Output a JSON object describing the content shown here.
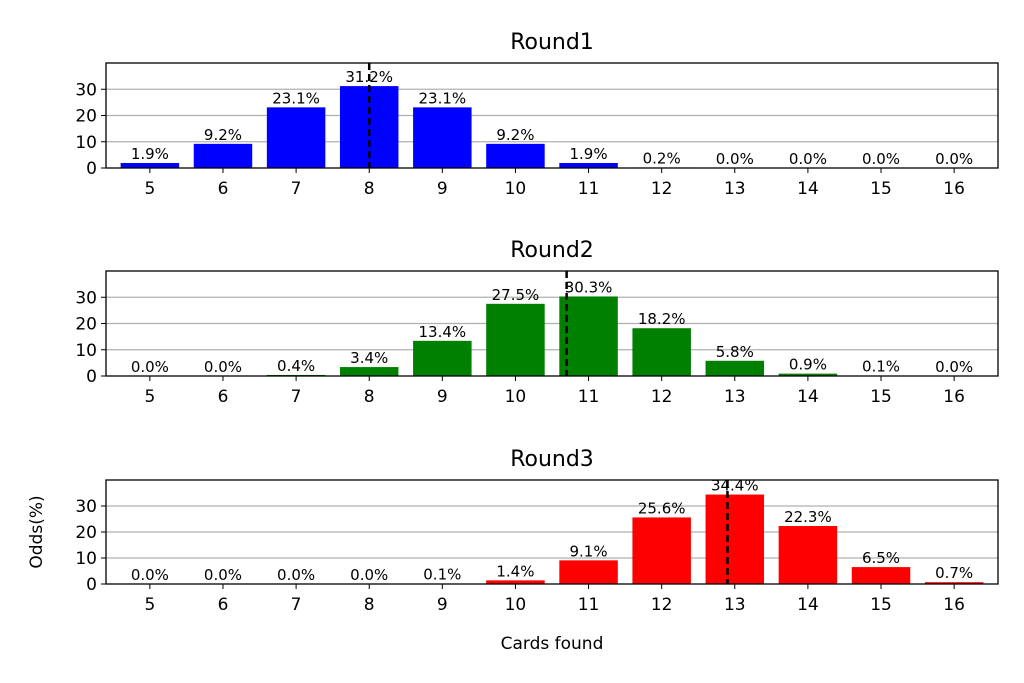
{
  "chart_data": [
    {
      "type": "bar",
      "title": "Round1",
      "xlabel": "",
      "ylabel": "",
      "categories": [
        5,
        6,
        7,
        8,
        9,
        10,
        11,
        12,
        13,
        14,
        15,
        16
      ],
      "values": [
        1.9,
        9.2,
        23.1,
        31.2,
        23.1,
        9.2,
        1.9,
        0.2,
        0.0,
        0.0,
        0.0,
        0.0
      ],
      "value_labels": [
        "1.9%",
        "9.2%",
        "23.1%",
        "31.2%",
        "23.1%",
        "9.2%",
        "1.9%",
        "0.2%",
        "0.0%",
        "0.0%",
        "0.0%",
        "0.0%"
      ],
      "mean_line": 8.0,
      "ylim": [
        0,
        40
      ],
      "yticks": [
        0,
        10,
        20,
        30
      ],
      "grid": "horizontal",
      "color": "#0000ff"
    },
    {
      "type": "bar",
      "title": "Round2",
      "xlabel": "",
      "ylabel": "",
      "categories": [
        5,
        6,
        7,
        8,
        9,
        10,
        11,
        12,
        13,
        14,
        15,
        16
      ],
      "values": [
        0.0,
        0.0,
        0.4,
        3.4,
        13.4,
        27.5,
        30.3,
        18.2,
        5.8,
        0.9,
        0.1,
        0.0
      ],
      "value_labels": [
        "0.0%",
        "0.0%",
        "0.4%",
        "3.4%",
        "13.4%",
        "27.5%",
        "30.3%",
        "18.2%",
        "5.8%",
        "0.9%",
        "0.1%",
        "0.0%"
      ],
      "mean_line": 10.7,
      "ylim": [
        0,
        40
      ],
      "yticks": [
        0,
        10,
        20,
        30
      ],
      "grid": "horizontal",
      "color": "#008000"
    },
    {
      "type": "bar",
      "title": "Round3",
      "xlabel": "Cards found",
      "ylabel": "Odds(%)",
      "categories": [
        5,
        6,
        7,
        8,
        9,
        10,
        11,
        12,
        13,
        14,
        15,
        16
      ],
      "values": [
        0.0,
        0.0,
        0.0,
        0.0,
        0.1,
        1.4,
        9.1,
        25.6,
        34.4,
        22.3,
        6.5,
        0.7
      ],
      "value_labels": [
        "0.0%",
        "0.0%",
        "0.0%",
        "0.0%",
        "0.1%",
        "1.4%",
        "9.1%",
        "25.6%",
        "34.4%",
        "22.3%",
        "6.5%",
        "0.7%"
      ],
      "mean_line": 12.9,
      "ylim": [
        0,
        40
      ],
      "yticks": [
        0,
        10,
        20,
        30
      ],
      "grid": "horizontal",
      "color": "#ff0000"
    }
  ]
}
